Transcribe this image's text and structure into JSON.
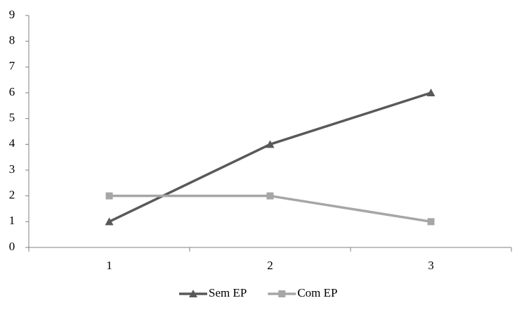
{
  "chart_data": {
    "type": "line",
    "categories": [
      "1",
      "2",
      "3"
    ],
    "series": [
      {
        "name": "Sem EP",
        "color": "#595959",
        "marker": "triangle",
        "values": [
          1,
          4,
          6
        ]
      },
      {
        "name": "Com EP",
        "color": "#a6a6a6",
        "marker": "square",
        "values": [
          2,
          2,
          1
        ]
      }
    ],
    "ylim": [
      0,
      9
    ],
    "yticks": [
      0,
      1,
      2,
      3,
      4,
      5,
      6,
      7,
      8,
      9
    ],
    "grid": false,
    "legend": "bottom"
  }
}
